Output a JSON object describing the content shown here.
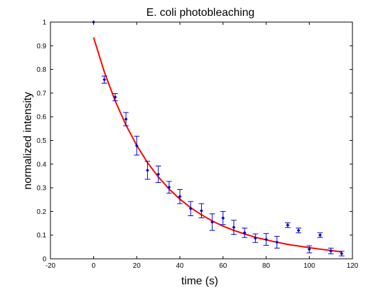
{
  "chart_data": {
    "type": "scatter",
    "title": "E. coli photobleaching",
    "xlabel": "time (s)",
    "ylabel": "normalized intensity",
    "xlim": [
      -20,
      120
    ],
    "ylim": [
      0,
      1
    ],
    "x_ticks": [
      "-20",
      "0",
      "20",
      "40",
      "60",
      "80",
      "100",
      "120"
    ],
    "y_ticks": [
      "0",
      "0.1",
      "0.2",
      "0.3",
      "0.4",
      "0.5",
      "0.6",
      "0.7",
      "0.8",
      "0.9",
      "1"
    ],
    "grid": false,
    "series": [
      {
        "type": "errorbar",
        "color": "#0000cc",
        "points": [
          {
            "x": 0,
            "y": 1.0,
            "err": 0.0
          },
          {
            "x": 5,
            "y": 0.757,
            "err": 0.015
          },
          {
            "x": 10,
            "y": 0.683,
            "err": 0.015
          },
          {
            "x": 15,
            "y": 0.59,
            "err": 0.028
          },
          {
            "x": 20,
            "y": 0.478,
            "err": 0.04
          },
          {
            "x": 25,
            "y": 0.374,
            "err": 0.038
          },
          {
            "x": 30,
            "y": 0.357,
            "err": 0.035
          },
          {
            "x": 35,
            "y": 0.302,
            "err": 0.025
          },
          {
            "x": 40,
            "y": 0.263,
            "err": 0.03
          },
          {
            "x": 45,
            "y": 0.212,
            "err": 0.03
          },
          {
            "x": 50,
            "y": 0.203,
            "err": 0.03
          },
          {
            "x": 55,
            "y": 0.155,
            "err": 0.035
          },
          {
            "x": 60,
            "y": 0.172,
            "err": 0.028
          },
          {
            "x": 65,
            "y": 0.133,
            "err": 0.03
          },
          {
            "x": 70,
            "y": 0.11,
            "err": 0.02
          },
          {
            "x": 75,
            "y": 0.087,
            "err": 0.018
          },
          {
            "x": 80,
            "y": 0.082,
            "err": 0.025
          },
          {
            "x": 85,
            "y": 0.07,
            "err": 0.025
          },
          {
            "x": 90,
            "y": 0.142,
            "err": 0.01
          },
          {
            "x": 95,
            "y": 0.12,
            "err": 0.01
          },
          {
            "x": 100,
            "y": 0.04,
            "err": 0.015
          },
          {
            "x": 105,
            "y": 0.1,
            "err": 0.01
          },
          {
            "x": 110,
            "y": 0.033,
            "err": 0.012
          },
          {
            "x": 115,
            "y": 0.022,
            "err": 0.01
          }
        ]
      },
      {
        "type": "line",
        "color": "#ff0000",
        "x": [
          0,
          5,
          10,
          15,
          20,
          25,
          30,
          35,
          40,
          45,
          50,
          55,
          60,
          65,
          70,
          75,
          80,
          85,
          90,
          95,
          100,
          105,
          110,
          115
        ],
        "y": [
          0.935,
          0.789,
          0.667,
          0.565,
          0.479,
          0.406,
          0.346,
          0.295,
          0.252,
          0.216,
          0.186,
          0.16,
          0.138,
          0.12,
          0.105,
          0.091,
          0.08,
          0.07,
          0.061,
          0.054,
          0.047,
          0.041,
          0.035,
          0.029
        ]
      }
    ]
  }
}
